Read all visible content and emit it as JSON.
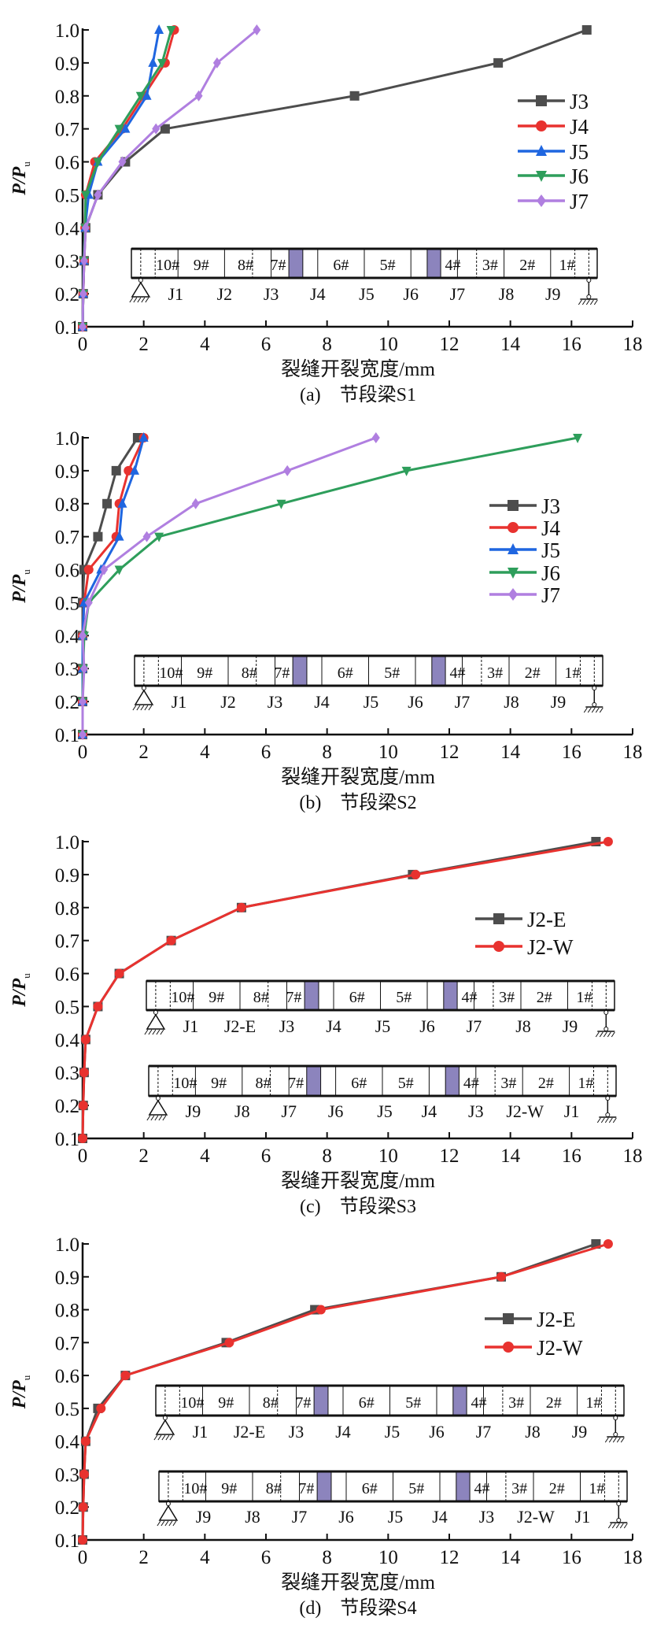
{
  "chart_data": [
    {
      "type": "line",
      "caption": "(a)　节段梁S1",
      "xlabel": "裂缝开裂宽度/mm",
      "ylabel": {
        "main": "P/P",
        "sub": "u"
      },
      "xlim": [
        0,
        18
      ],
      "ylim": [
        0.1,
        1.0
      ],
      "xticks": [
        "0",
        "2",
        "4",
        "6",
        "8",
        "10",
        "12",
        "14",
        "16",
        "18"
      ],
      "yticks": [
        "0.1",
        "0.2",
        "0.3",
        "0.4",
        "0.5",
        "0.6",
        "0.7",
        "0.8",
        "0.9",
        "1.0"
      ],
      "legend": "right",
      "y": [
        0.1,
        0.2,
        0.3,
        0.4,
        0.5,
        0.6,
        0.7,
        0.8,
        0.9,
        1.0
      ],
      "series": [
        {
          "name": "J3",
          "color": "#4d4d4d",
          "marker": "square",
          "x": [
            0,
            0.02,
            0.05,
            0.1,
            0.5,
            1.4,
            2.7,
            8.9,
            13.6,
            16.5
          ]
        },
        {
          "name": "J4",
          "color": "#e8322f",
          "marker": "circle",
          "x": [
            0,
            0.02,
            0.05,
            0.08,
            0.1,
            0.4,
            1.3,
            2.0,
            2.7,
            3.0
          ]
        },
        {
          "name": "J5",
          "color": "#1f66e0",
          "marker": "triangle-up",
          "x": [
            0,
            0.02,
            0.04,
            0.08,
            0.2,
            0.5,
            1.4,
            2.1,
            2.3,
            2.5
          ]
        },
        {
          "name": "J6",
          "color": "#2e9e5b",
          "marker": "triangle-down",
          "x": [
            0,
            0.02,
            0.04,
            0.08,
            0.1,
            0.5,
            1.2,
            1.9,
            2.6,
            2.9
          ]
        },
        {
          "name": "J7",
          "color": "#b07fe0",
          "marker": "diamond",
          "x": [
            0,
            0.02,
            0.05,
            0.1,
            0.5,
            1.3,
            2.4,
            3.8,
            4.4,
            5.7
          ]
        }
      ],
      "beams": [
        {
          "segments": [
            "10#",
            "9#",
            "8#",
            "7#",
            "6#",
            "5#",
            "4#",
            "3#",
            "2#",
            "1#"
          ],
          "joints": [
            "J1",
            "J2",
            "J3",
            "J4",
            "J5",
            "J6",
            "J7",
            "J8",
            "J9"
          ]
        }
      ]
    },
    {
      "type": "line",
      "caption": "(b)　节段梁S2",
      "xlabel": "裂缝开裂宽度/mm",
      "ylabel": {
        "main": "P/P",
        "sub": "u"
      },
      "xlim": [
        0,
        18
      ],
      "ylim": [
        0.1,
        1.0
      ],
      "xticks": [
        "0",
        "2",
        "4",
        "6",
        "8",
        "10",
        "12",
        "14",
        "16",
        "18"
      ],
      "yticks": [
        "0.1",
        "0.2",
        "0.3",
        "0.4",
        "0.5",
        "0.6",
        "0.7",
        "0.8",
        "0.9",
        "1.0"
      ],
      "legend": "right",
      "y": [
        0.1,
        0.2,
        0.3,
        0.4,
        0.5,
        0.6,
        0.7,
        0.8,
        0.9,
        1.0
      ],
      "series": [
        {
          "name": "J3",
          "color": "#4d4d4d",
          "marker": "square",
          "x": [
            0,
            0,
            0,
            0,
            0,
            0.05,
            0.5,
            0.8,
            1.1,
            1.8
          ]
        },
        {
          "name": "J4",
          "color": "#e8322f",
          "marker": "circle",
          "x": [
            0,
            0,
            0,
            0,
            0.05,
            0.2,
            1.1,
            1.2,
            1.5,
            2.0
          ]
        },
        {
          "name": "J5",
          "color": "#1f66e0",
          "marker": "triangle-up",
          "x": [
            0,
            0,
            0,
            0,
            0.05,
            0.6,
            1.2,
            1.3,
            1.7,
            2.0
          ]
        },
        {
          "name": "J6",
          "color": "#2e9e5b",
          "marker": "triangle-down",
          "x": [
            0,
            0,
            0.02,
            0.05,
            0.2,
            1.2,
            2.5,
            6.5,
            10.6,
            16.2
          ]
        },
        {
          "name": "J7",
          "color": "#b07fe0",
          "marker": "diamond",
          "x": [
            0,
            0,
            0.05,
            0,
            0.2,
            0.7,
            2.1,
            3.7,
            6.7,
            9.6
          ]
        }
      ],
      "beams": [
        {
          "segments": [
            "10#",
            "9#",
            "8#",
            "7#",
            "6#",
            "5#",
            "4#",
            "3#",
            "2#",
            "1#"
          ],
          "joints": [
            "J1",
            "J2",
            "J3",
            "J4",
            "J5",
            "J6",
            "J7",
            "J8",
            "J9"
          ]
        }
      ]
    },
    {
      "type": "line",
      "caption": "(c)　节段梁S3",
      "xlabel": "裂缝开裂宽度/mm",
      "ylabel": {
        "main": "P/P",
        "sub": "u"
      },
      "xlim": [
        0,
        18
      ],
      "ylim": [
        0.1,
        1.0
      ],
      "xticks": [
        "0",
        "2",
        "4",
        "6",
        "8",
        "10",
        "12",
        "14",
        "16",
        "18"
      ],
      "yticks": [
        "0.1",
        "0.2",
        "0.3",
        "0.4",
        "0.5",
        "0.6",
        "0.7",
        "0.8",
        "0.9",
        "1.0"
      ],
      "legend": "right",
      "y": [
        0.1,
        0.2,
        0.3,
        0.4,
        0.5,
        0.6,
        0.7,
        0.8,
        0.9,
        1.0
      ],
      "series": [
        {
          "name": "J2-E",
          "color": "#4d4d4d",
          "marker": "square",
          "x": [
            0,
            0.02,
            0.05,
            0.1,
            0.5,
            1.2,
            2.9,
            5.2,
            10.8,
            16.8
          ]
        },
        {
          "name": "J2-W",
          "color": "#e8322f",
          "marker": "circle",
          "x": [
            0,
            0.02,
            0.05,
            0.1,
            0.5,
            1.2,
            2.9,
            5.2,
            10.9,
            17.2
          ]
        }
      ],
      "beams": [
        {
          "segments": [
            "10#",
            "9#",
            "8#",
            "7#",
            "6#",
            "5#",
            "4#",
            "3#",
            "2#",
            "1#"
          ],
          "joints": [
            "J1",
            "J2-E",
            "J3",
            "J4",
            "J5",
            "J6",
            "J7",
            "J8",
            "J9"
          ]
        },
        {
          "segments": [
            "10#",
            "9#",
            "8#",
            "7#",
            "6#",
            "5#",
            "4#",
            "3#",
            "2#",
            "1#"
          ],
          "joints": [
            "J9",
            "J8",
            "J7",
            "J6",
            "J5",
            "J4",
            "J3",
            "J2-W",
            "J1"
          ]
        }
      ]
    },
    {
      "type": "line",
      "caption": "(d)　节段梁S4",
      "xlabel": "裂缝开裂宽度/mm",
      "ylabel": {
        "main": "P/P",
        "sub": "u"
      },
      "xlim": [
        0,
        18
      ],
      "ylim": [
        0.1,
        1.0
      ],
      "xticks": [
        "0",
        "2",
        "4",
        "6",
        "8",
        "10",
        "12",
        "14",
        "16",
        "18"
      ],
      "yticks": [
        "0.1",
        "0.2",
        "0.3",
        "0.4",
        "0.5",
        "0.6",
        "0.7",
        "0.8",
        "0.9",
        "1.0"
      ],
      "legend": "right",
      "y": [
        0.1,
        0.2,
        0.3,
        0.4,
        0.5,
        0.6,
        0.7,
        0.8,
        0.9,
        1.0
      ],
      "series": [
        {
          "name": "J2-E",
          "color": "#4d4d4d",
          "marker": "square",
          "x": [
            0,
            0.02,
            0.05,
            0.1,
            0.5,
            1.4,
            4.7,
            7.6,
            13.7,
            16.8
          ]
        },
        {
          "name": "J2-W",
          "color": "#e8322f",
          "marker": "circle",
          "x": [
            0,
            0.02,
            0.05,
            0.1,
            0.6,
            1.4,
            4.8,
            7.8,
            13.7,
            17.2
          ]
        }
      ],
      "beams": [
        {
          "segments": [
            "10#",
            "9#",
            "8#",
            "7#",
            "6#",
            "5#",
            "4#",
            "3#",
            "2#",
            "1#"
          ],
          "joints": [
            "J1",
            "J2-E",
            "J3",
            "J4",
            "J5",
            "J6",
            "J7",
            "J8",
            "J9"
          ]
        },
        {
          "segments": [
            "10#",
            "9#",
            "8#",
            "7#",
            "6#",
            "5#",
            "4#",
            "3#",
            "2#",
            "1#"
          ],
          "joints": [
            "J9",
            "J8",
            "J7",
            "J6",
            "J5",
            "J4",
            "J3",
            "J2-W",
            "J1"
          ]
        }
      ]
    }
  ]
}
